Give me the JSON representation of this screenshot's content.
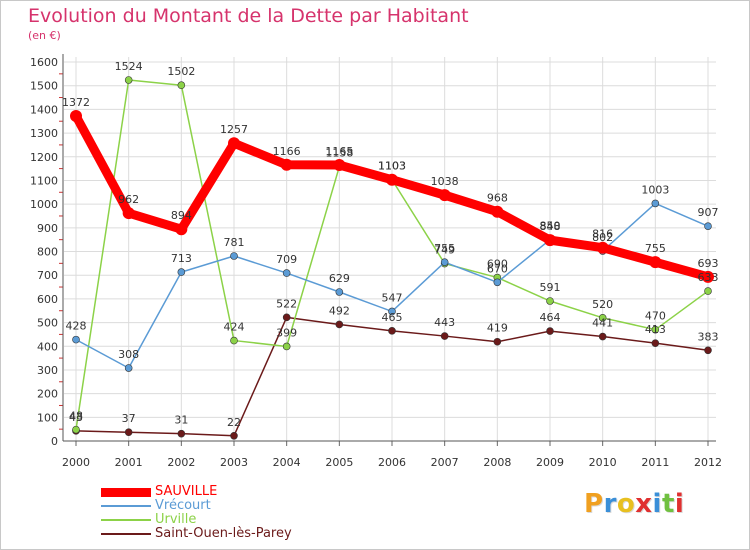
{
  "chart_data": {
    "type": "line",
    "title": "Evolution du Montant de la Dette par Habitant",
    "subtitle": "(en €)",
    "x": [
      "2000",
      "2001",
      "2002",
      "2003",
      "2004",
      "2005",
      "2006",
      "2007",
      "2008",
      "2009",
      "2010",
      "2011",
      "2012"
    ],
    "ylim": [
      0,
      1600
    ],
    "yticks": [
      0,
      100,
      200,
      300,
      400,
      500,
      600,
      700,
      800,
      900,
      1000,
      1100,
      1200,
      1300,
      1400,
      1500,
      1600
    ],
    "grid": true,
    "legend_position": "bottom-left",
    "series": [
      {
        "name": "SAUVILLE",
        "color": "#ff0000",
        "values": [
          1372,
          962,
          894,
          1257,
          1166,
          1165,
          1103,
          1038,
          968,
          848,
          816,
          755,
          693
        ],
        "labels": [
          "1372",
          "962",
          "894",
          "1257",
          "1166",
          "1165",
          "1103",
          "1038",
          "968",
          "848",
          "816",
          "755",
          "693"
        ]
      },
      {
        "name": "Vrécourt",
        "color": "#5b9bd5",
        "values": [
          428,
          308,
          713,
          781,
          709,
          629,
          547,
          755,
          670,
          850,
          802,
          1003,
          907
        ],
        "labels": [
          "428",
          "308",
          "713",
          "781",
          "709",
          "629",
          "547",
          "755",
          "670",
          "850",
          "802",
          "1003",
          "907"
        ]
      },
      {
        "name": "Urville",
        "color": "#8cd248",
        "values": [
          48,
          1524,
          1502,
          424,
          399,
          1158,
          1103,
          749,
          690,
          591,
          520,
          470,
          633
        ],
        "labels": [
          "48",
          "1524",
          "1502",
          "424",
          "399",
          "1158",
          "1103",
          "749",
          "690",
          "591",
          "520",
          "470",
          "633"
        ]
      },
      {
        "name": "Saint-Ouen-lès-Parey",
        "color": "#6b1a1a",
        "values": [
          43,
          37,
          31,
          22,
          522,
          492,
          465,
          443,
          419,
          464,
          441,
          413,
          383
        ],
        "labels": [
          "43",
          "37",
          "31",
          "22",
          "522",
          "492",
          "465",
          "443",
          "419",
          "464",
          "441",
          "413",
          "383"
        ]
      }
    ]
  },
  "logo": {
    "letters": [
      "P",
      "r",
      "o",
      "x",
      "i",
      "t",
      "i"
    ],
    "colors": [
      "#f0a020",
      "#3a8fd8",
      "#e8c020",
      "#e03030",
      "#3a8fd8",
      "#70c040",
      "#e03030"
    ]
  }
}
